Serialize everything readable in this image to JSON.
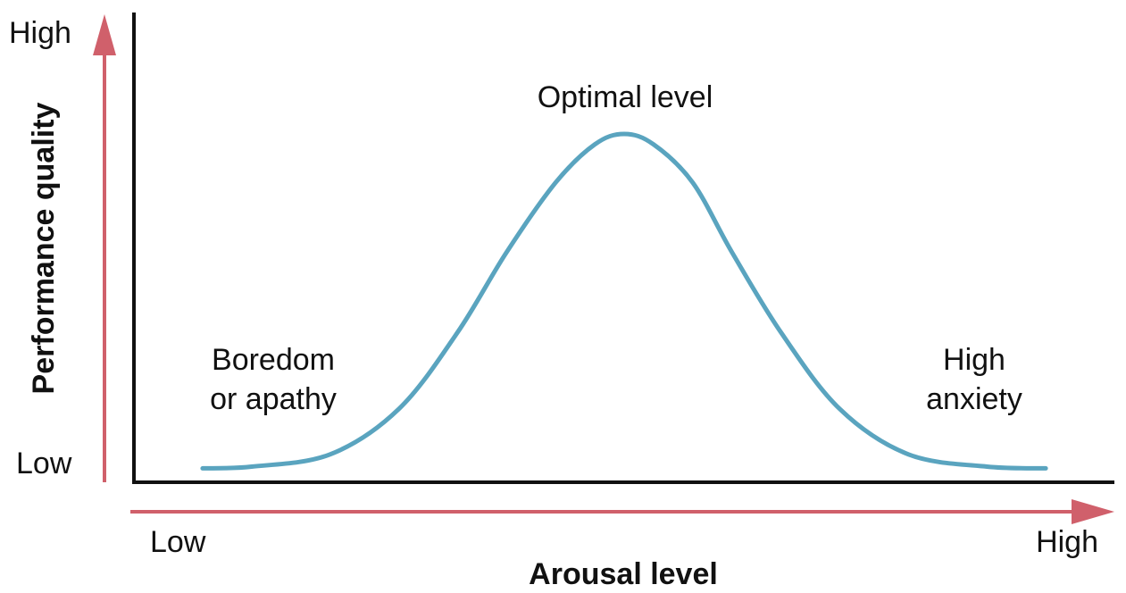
{
  "chart_data": {
    "type": "line",
    "xlabel": "Arousal level",
    "ylabel": "Performance quality",
    "x_ticks": {
      "low": "Low",
      "high": "High"
    },
    "y_ticks": {
      "low": "Low",
      "high": "High"
    },
    "xlim": [
      0,
      1
    ],
    "ylim": [
      0,
      1
    ],
    "grid": false,
    "series": [
      {
        "color": "#5aa4bf",
        "x": [
          0.07,
          0.12,
          0.2,
          0.27,
          0.33,
          0.38,
          0.43,
          0.47,
          0.5,
          0.53,
          0.57,
          0.61,
          0.66,
          0.72,
          0.79,
          0.87,
          0.93
        ],
        "y": [
          0.04,
          0.045,
          0.08,
          0.21,
          0.43,
          0.66,
          0.86,
          0.97,
          1.0,
          0.97,
          0.86,
          0.66,
          0.43,
          0.21,
          0.08,
          0.045,
          0.04
        ]
      }
    ],
    "annotations": [
      {
        "id": "boredom",
        "lines": [
          "Boredom",
          "or apathy"
        ],
        "x": 0.14,
        "y": 0.31
      },
      {
        "id": "optimal",
        "lines": [
          "Optimal level"
        ],
        "x": 0.5,
        "y": 1.1
      },
      {
        "id": "anxiety",
        "lines": [
          "High",
          "anxiety"
        ],
        "x": 0.87,
        "y": 0.31
      }
    ],
    "colors": {
      "axis_line": "#111111",
      "arrow": "#d0606b",
      "curve": "#5aa4bf"
    }
  }
}
